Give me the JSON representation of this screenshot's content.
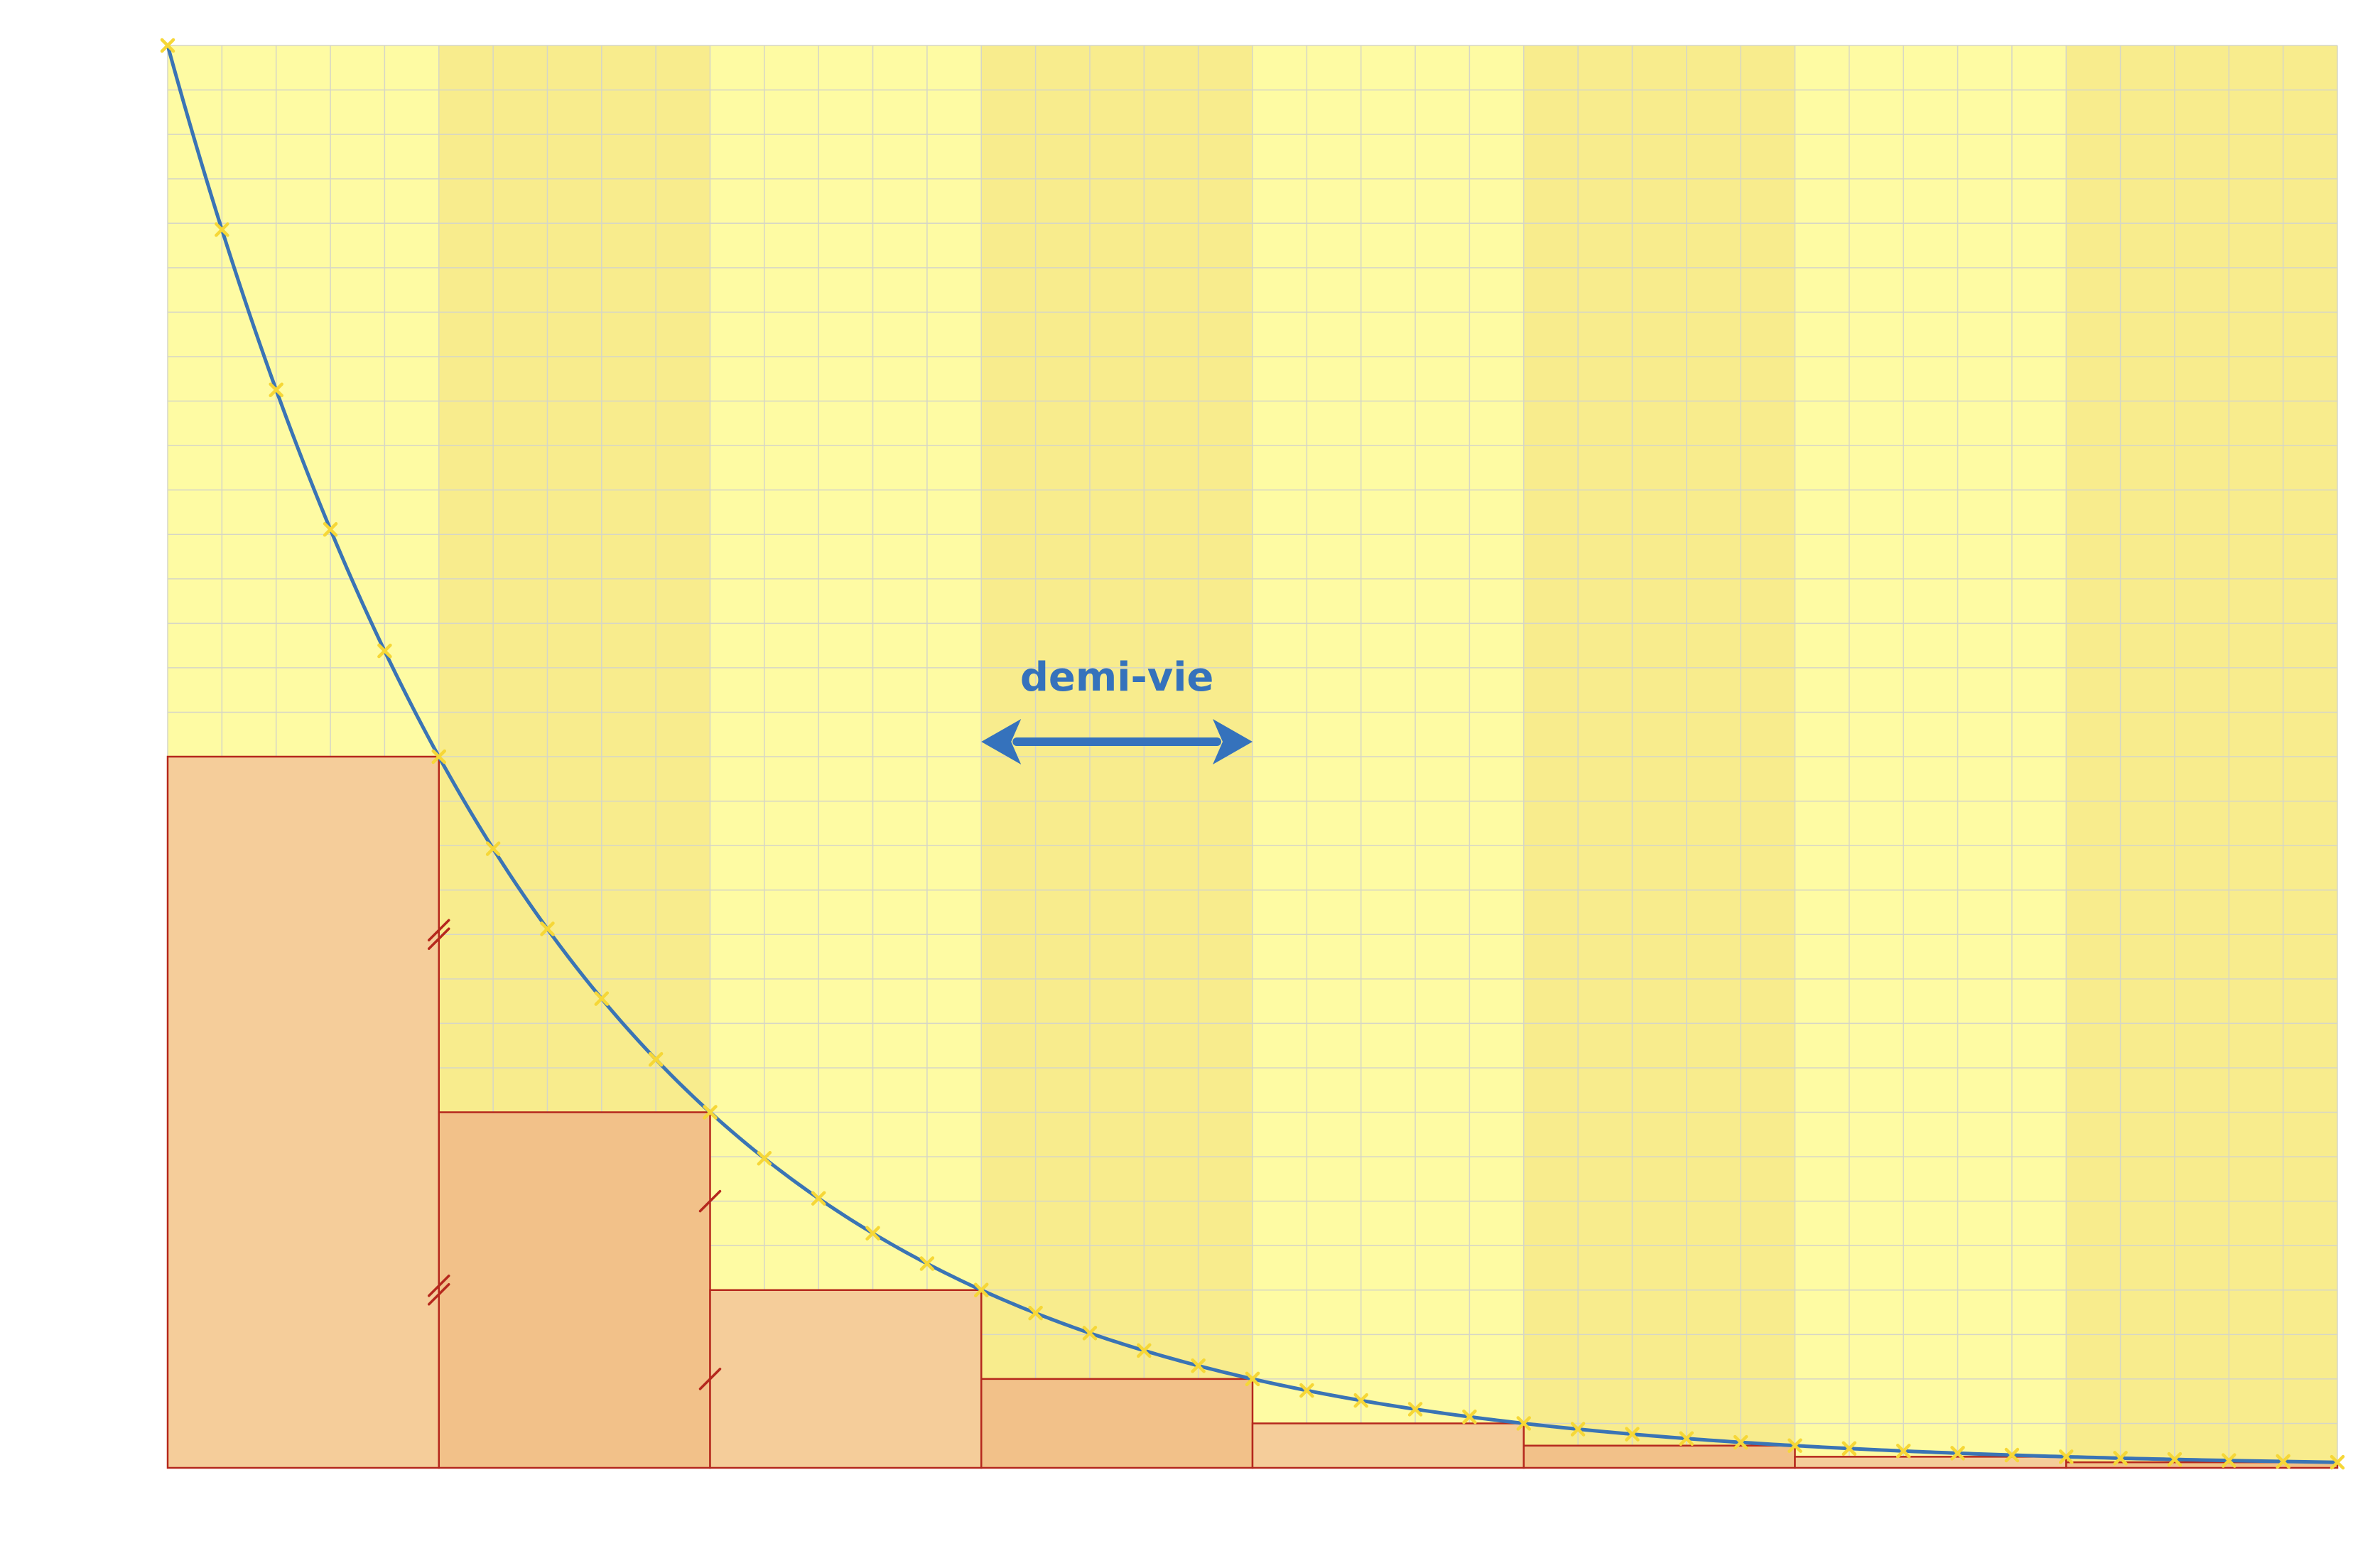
{
  "diagram": {
    "annotation_label": "demi-vie",
    "half_lives": 8,
    "samples_per_half_life": 5,
    "y_max": 1,
    "colors": {
      "band_light": "#fefba3",
      "band_dark": "#f8ec8d",
      "grid": "#d6d6c6",
      "curve": "#3a74b5",
      "marker": "#f6d737",
      "bar_light": "#f5cd9a",
      "bar_dark": "#f2c189",
      "bar_edge": "#b5281d",
      "tick": "#b5281d",
      "arrow": "#3572bc"
    }
  }
}
